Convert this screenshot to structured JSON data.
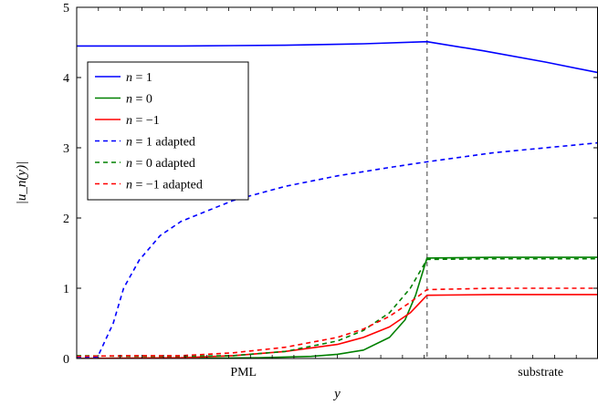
{
  "chart_data": {
    "type": "line",
    "xlabel": "y",
    "ylabel": "|u_n(y)|",
    "ylim": [
      0,
      5
    ],
    "yticks": [
      "0",
      "1",
      "2",
      "3",
      "4",
      "5"
    ],
    "xlim": [
      0,
      1
    ],
    "x_region_labels": [
      {
        "text": "PML",
        "x": 0.32
      },
      {
        "text": "substrate",
        "x": 0.89
      }
    ],
    "interface_x": 0.672,
    "grid": false,
    "legend_position": "top-left",
    "series": [
      {
        "name": "n = 1",
        "legend_var": "n",
        "legend_rest": " = 1",
        "color": "#0000ff",
        "dash": false,
        "points": [
          [
            0,
            4.45
          ],
          [
            0.2,
            4.45
          ],
          [
            0.4,
            4.46
          ],
          [
            0.55,
            4.48
          ],
          [
            0.672,
            4.51
          ],
          [
            0.78,
            4.38
          ],
          [
            0.9,
            4.22
          ],
          [
            1.0,
            4.07
          ]
        ]
      },
      {
        "name": "n = 0",
        "legend_var": "n",
        "legend_rest": " = 0",
        "color": "#008000",
        "dash": false,
        "points": [
          [
            0,
            0.0
          ],
          [
            0.2,
            0.0
          ],
          [
            0.35,
            0.01
          ],
          [
            0.45,
            0.03
          ],
          [
            0.5,
            0.06
          ],
          [
            0.55,
            0.12
          ],
          [
            0.6,
            0.3
          ],
          [
            0.63,
            0.55
          ],
          [
            0.65,
            0.9
          ],
          [
            0.672,
            1.43
          ],
          [
            0.8,
            1.44
          ],
          [
            1.0,
            1.44
          ]
        ]
      },
      {
        "name": "n = −1",
        "legend_var": "n",
        "legend_rest": " = −1",
        "color": "#ff0000",
        "dash": false,
        "points": [
          [
            0,
            0.0
          ],
          [
            0.2,
            0.01
          ],
          [
            0.3,
            0.04
          ],
          [
            0.4,
            0.1
          ],
          [
            0.5,
            0.2
          ],
          [
            0.55,
            0.3
          ],
          [
            0.6,
            0.45
          ],
          [
            0.64,
            0.65
          ],
          [
            0.672,
            0.9
          ],
          [
            0.8,
            0.91
          ],
          [
            1.0,
            0.91
          ]
        ]
      },
      {
        "name": "n = 1 adapted",
        "legend_var": "n",
        "legend_rest": " = 1  adapted",
        "color": "#0000ff",
        "dash": true,
        "points": [
          [
            0,
            0.02
          ],
          [
            0.04,
            0.02
          ],
          [
            0.07,
            0.5
          ],
          [
            0.09,
            1.0
          ],
          [
            0.12,
            1.4
          ],
          [
            0.16,
            1.75
          ],
          [
            0.2,
            1.95
          ],
          [
            0.3,
            2.25
          ],
          [
            0.4,
            2.45
          ],
          [
            0.5,
            2.6
          ],
          [
            0.6,
            2.72
          ],
          [
            0.672,
            2.8
          ],
          [
            0.8,
            2.93
          ],
          [
            0.9,
            3.0
          ],
          [
            1.0,
            3.07
          ]
        ]
      },
      {
        "name": "n = 0 adapted",
        "legend_var": "n",
        "legend_rest": " = 0  adapted",
        "color": "#008000",
        "dash": true,
        "points": [
          [
            0,
            0.04
          ],
          [
            0.1,
            0.03
          ],
          [
            0.2,
            0.03
          ],
          [
            0.3,
            0.04
          ],
          [
            0.4,
            0.1
          ],
          [
            0.5,
            0.25
          ],
          [
            0.55,
            0.4
          ],
          [
            0.6,
            0.65
          ],
          [
            0.64,
            1.0
          ],
          [
            0.672,
            1.41
          ],
          [
            0.8,
            1.42
          ],
          [
            1.0,
            1.42
          ]
        ]
      },
      {
        "name": "n = −1 adapted",
        "legend_var": "n",
        "legend_rest": " = −1  adapted",
        "color": "#ff0000",
        "dash": true,
        "points": [
          [
            0,
            0.03
          ],
          [
            0.1,
            0.04
          ],
          [
            0.2,
            0.04
          ],
          [
            0.3,
            0.08
          ],
          [
            0.4,
            0.16
          ],
          [
            0.5,
            0.3
          ],
          [
            0.55,
            0.42
          ],
          [
            0.6,
            0.6
          ],
          [
            0.64,
            0.8
          ],
          [
            0.672,
            0.98
          ],
          [
            0.8,
            1.0
          ],
          [
            1.0,
            1.0
          ]
        ]
      }
    ]
  }
}
